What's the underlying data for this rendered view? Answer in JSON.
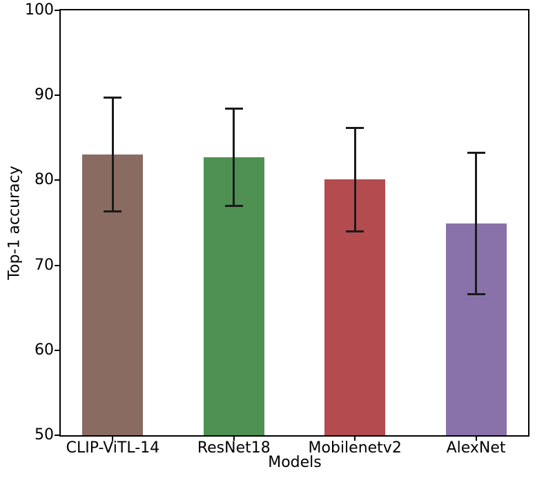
{
  "chart_data": {
    "type": "bar",
    "title": "",
    "xlabel": "Models",
    "ylabel": "Top-1 accuracy",
    "categories": [
      "CLIP-ViTL-14",
      "ResNet18",
      "Mobilenetv2",
      "AlexNet"
    ],
    "values": [
      83.0,
      82.7,
      80.1,
      74.9
    ],
    "errors": [
      6.7,
      5.7,
      6.1,
      8.3
    ],
    "bar_colors": [
      "#8A6B61",
      "#4E9152",
      "#B44B4F",
      "#8972A9"
    ],
    "error_bar_color": "#1a1a1a",
    "ylim": [
      50,
      100
    ],
    "yticks": [
      50,
      60,
      70,
      80,
      90,
      100
    ],
    "grid": false,
    "legend": "none",
    "background_color": "#ffffff",
    "spine_color": "#000000"
  }
}
